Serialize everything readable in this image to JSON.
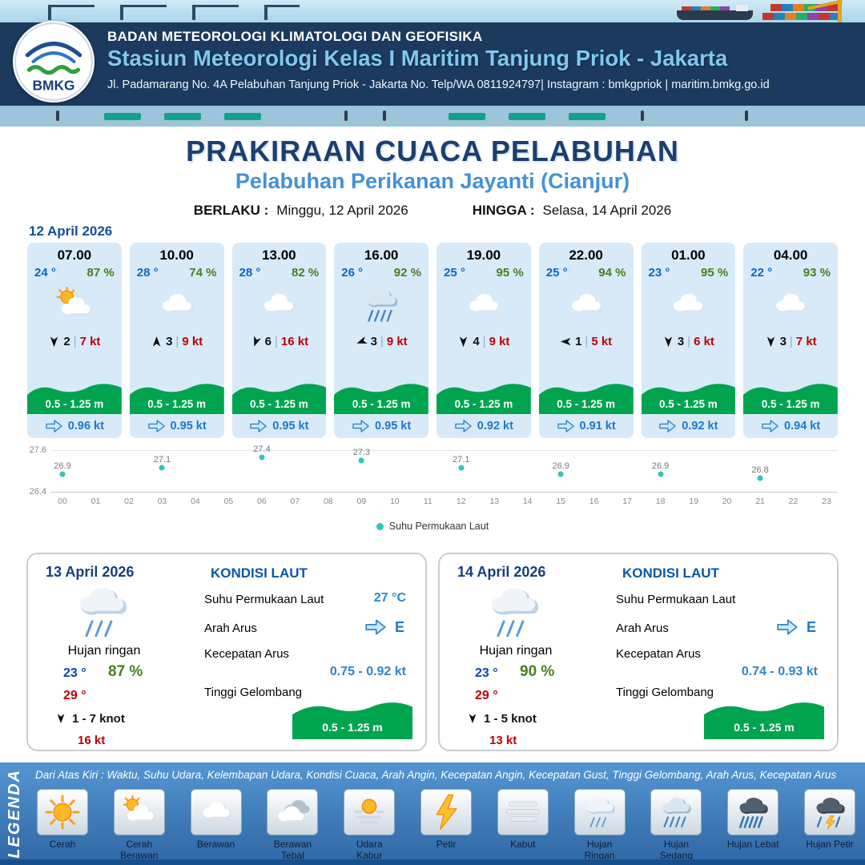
{
  "header": {
    "org": "BADAN METEOROLOGI KLIMATOLOGI DAN GEOFISIKA",
    "station": "Stasiun Meteorologi Kelas I Maritim Tanjung Priok - Jakarta",
    "address": "Jl. Padamarang No. 4A Pelabuhan Tanjung Priok - Jakarta No. Telp/WA 0811924797| Instagram : bmkgpriok | maritim.bmkg.go.id",
    "logo_label": "BMKG"
  },
  "title": {
    "main": "PRAKIRAAN CUACA PELABUHAN",
    "sub": "Pelabuhan Perikanan Jayanti (Cianjur)",
    "berlaku_label": "BERLAKU :",
    "berlaku_value": "Minggu, 12 April 2026",
    "hingga_label": "HINGGA :",
    "hingga_value": "Selasa, 14 April 2026"
  },
  "forecast_date": "12 April 2026",
  "labels": {
    "sep": "|",
    "kondisi": "KONDISI LAUT",
    "sst": "Suhu Permukaan Laut",
    "arah": "Arah Arus",
    "kecepatan": "Kecepatan Arus",
    "tinggi": "Tinggi Gelombang"
  },
  "cards": [
    {
      "time": "07.00",
      "temp": "24 °",
      "rh": "87 %",
      "icon": "cerah-berawan",
      "wind": "2",
      "gust": "7 kt",
      "wind_deg": 180,
      "wave": "0.5 - 1.25 m",
      "current": "0.96 kt"
    },
    {
      "time": "10.00",
      "temp": "28 °",
      "rh": "74 %",
      "icon": "berawan",
      "wind": "3",
      "gust": "9 kt",
      "wind_deg": 0,
      "wave": "0.5 - 1.25 m",
      "current": "0.95 kt"
    },
    {
      "time": "13.00",
      "temp": "28 °",
      "rh": "82 %",
      "icon": "berawan",
      "wind": "6",
      "gust": "16 kt",
      "wind_deg": 200,
      "wave": "0.5 - 1.25 m",
      "current": "0.95 kt"
    },
    {
      "time": "16.00",
      "temp": "26 °",
      "rh": "92 %",
      "icon": "hujan-sedang",
      "wind": "3",
      "gust": "9 kt",
      "wind_deg": 250,
      "wave": "0.5 - 1.25 m",
      "current": "0.95 kt"
    },
    {
      "time": "19.00",
      "temp": "25 °",
      "rh": "95 %",
      "icon": "berawan",
      "wind": "4",
      "gust": "9 kt",
      "wind_deg": 180,
      "wave": "0.5 - 1.25 m",
      "current": "0.92 kt"
    },
    {
      "time": "22.00",
      "temp": "25 °",
      "rh": "94 %",
      "icon": "berawan",
      "wind": "1",
      "gust": "5 kt",
      "wind_deg": 270,
      "wave": "0.5 - 1.25 m",
      "current": "0.91 kt"
    },
    {
      "time": "01.00",
      "temp": "23 °",
      "rh": "95 %",
      "icon": "berawan",
      "wind": "3",
      "gust": "6 kt",
      "wind_deg": 180,
      "wave": "0.5 - 1.25 m",
      "current": "0.92 kt"
    },
    {
      "time": "04.00",
      "temp": "22 °",
      "rh": "93 %",
      "icon": "berawan",
      "wind": "3",
      "gust": "7 kt",
      "wind_deg": 180,
      "wave": "0.5 - 1.25 m",
      "current": "0.94 kt"
    }
  ],
  "chart_data": {
    "type": "scatter",
    "x": [
      0,
      3,
      6,
      9,
      12,
      15,
      18,
      21
    ],
    "values": [
      26.9,
      27.1,
      27.4,
      27.3,
      27.1,
      26.9,
      26.9,
      26.8
    ],
    "x_ticks": [
      "00",
      "01",
      "02",
      "03",
      "04",
      "05",
      "06",
      "07",
      "08",
      "09",
      "10",
      "11",
      "12",
      "13",
      "14",
      "15",
      "16",
      "17",
      "18",
      "19",
      "20",
      "21",
      "22",
      "23"
    ],
    "ylim": [
      26.4,
      27.6
    ],
    "legend": "Suhu Permukaan Laut",
    "dot_color": "#2fc7b8",
    "grid": "horizontal"
  },
  "days": [
    {
      "date": "13 April 2026",
      "icon": "hujan-ringan",
      "weather": "Hujan ringan",
      "tmin": "23 °",
      "rh": "87 %",
      "tmax": "29 °",
      "wind": "1 - 7 knot",
      "wind_deg": 180,
      "gust": "16 kt",
      "sst": "27 °C",
      "arah": "E",
      "kecepatan": "0.75 - 0.92 kt",
      "gelombang": "0.5 - 1.25 m"
    },
    {
      "date": "14 April 2026",
      "icon": "hujan-ringan",
      "weather": "Hujan ringan",
      "tmin": "23 °",
      "rh": "90 %",
      "tmax": "29 °",
      "wind": "1 - 5 knot",
      "wind_deg": 180,
      "gust": "13 kt",
      "sst": "",
      "arah": "E",
      "kecepatan": "0.74 - 0.93 kt",
      "gelombang": "0.5 - 1.25 m"
    }
  ],
  "legend": {
    "title": "LEGENDA",
    "note": "Dari Atas Kiri : Waktu, Suhu Udara, Kelembapan Udara, Kondisi Cuaca, Arah Angin, Kecepatan Angin, Kecepatan Gust, Tinggi Gelombang, Arah Arus, Kecepatan Arus",
    "items": [
      {
        "label": "Cerah",
        "icon": "cerah"
      },
      {
        "label": "Cerah Berawan",
        "icon": "cerah-berawan"
      },
      {
        "label": "Berawan",
        "icon": "berawan"
      },
      {
        "label": "Berawan Tebal",
        "icon": "berawan-tebal"
      },
      {
        "label": "Udara Kabur",
        "icon": "udara-kabur"
      },
      {
        "label": "Petir",
        "icon": "petir"
      },
      {
        "label": "Kabut",
        "icon": "kabut"
      },
      {
        "label": "Hujan Ringan",
        "icon": "hujan-ringan"
      },
      {
        "label": "Hujan Sedang",
        "icon": "hujan-sedang"
      },
      {
        "label": "Hujan Lebat",
        "icon": "hujan-lebat"
      },
      {
        "label": "Hujan Petir",
        "icon": "hujan-petir"
      }
    ]
  }
}
